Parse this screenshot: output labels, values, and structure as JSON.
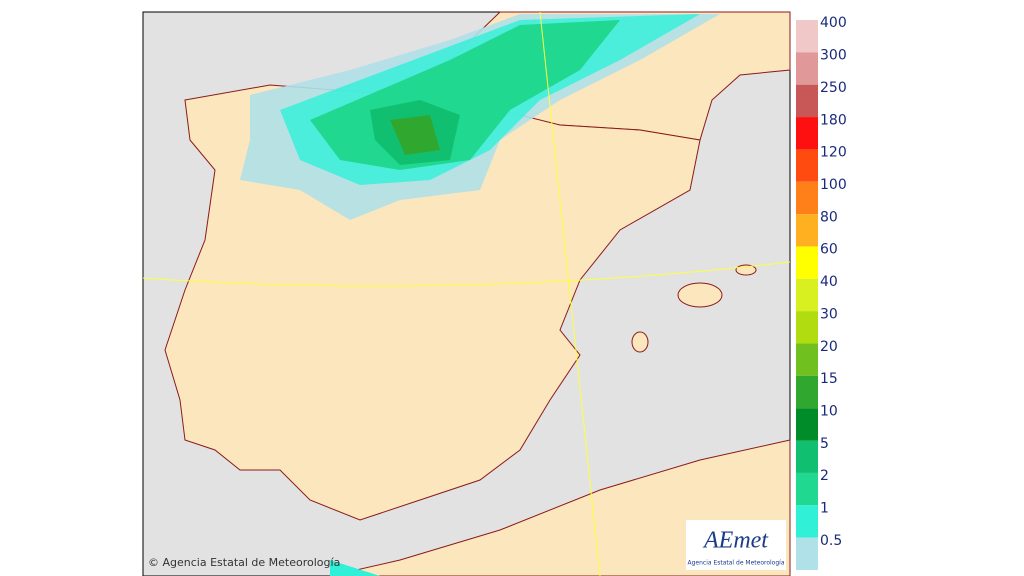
{
  "legend": {
    "items": [
      {
        "label": "400",
        "color": "#f0c8c8"
      },
      {
        "label": "300",
        "color": "#e09898"
      },
      {
        "label": "250",
        "color": "#c85858"
      },
      {
        "label": "180",
        "color": "#ff1010"
      },
      {
        "label": "120",
        "color": "#ff4a10"
      },
      {
        "label": "100",
        "color": "#ff8018"
      },
      {
        "label": "80",
        "color": "#ffb020"
      },
      {
        "label": "60",
        "color": "#ffff00"
      },
      {
        "label": "40",
        "color": "#d8f020"
      },
      {
        "label": "30",
        "color": "#b0dc10"
      },
      {
        "label": "20",
        "color": "#70c020"
      },
      {
        "label": "15",
        "color": "#30a830"
      },
      {
        "label": "10",
        "color": "#008c28"
      },
      {
        "label": "5",
        "color": "#10c070"
      },
      {
        "label": "2",
        "color": "#20d890"
      },
      {
        "label": "1",
        "color": "#30f0d8"
      },
      {
        "label": "0.5",
        "color": "#b0e0e8"
      }
    ]
  },
  "credit": "© Agencia Estatal de Meteorología",
  "logo": {
    "name": "AEmet",
    "subtitle": "Agencia Estatal de Meteorología"
  }
}
